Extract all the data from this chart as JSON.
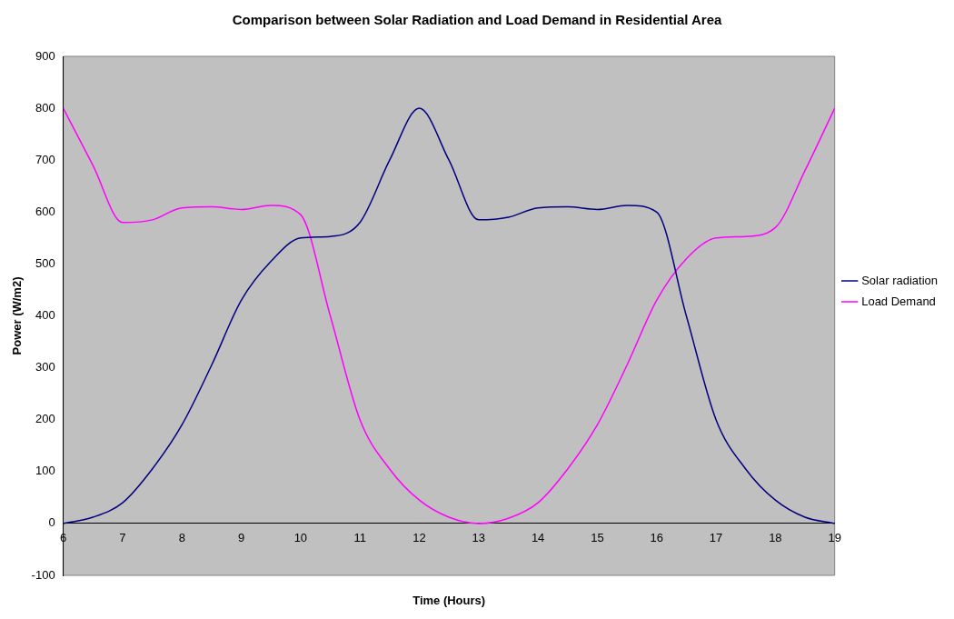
{
  "chart_data": {
    "type": "line",
    "title": "Comparison between Solar Radiation and Load Demand in Residential Area",
    "xlabel": "Time (Hours)",
    "ylabel": "Power (W/m2)",
    "xlim": [
      6,
      19
    ],
    "xticks": [
      6,
      7,
      8,
      9,
      10,
      11,
      12,
      13,
      14,
      15,
      16,
      17,
      18,
      19
    ],
    "ylim": [
      -100,
      900
    ],
    "yticks": [
      -100,
      0,
      100,
      200,
      300,
      400,
      500,
      600,
      700,
      800,
      900
    ],
    "x": [
      6,
      6.5,
      7,
      7.5,
      8,
      8.5,
      9,
      9.5,
      10,
      10.5,
      11,
      11.5,
      12,
      12.5,
      13,
      13.5,
      14,
      14.5,
      15,
      15.5,
      16,
      16.5,
      17,
      17.5,
      18,
      18.5,
      19
    ],
    "series": [
      {
        "name": "Solar radiation",
        "color": "#000080",
        "values": [
          0,
          12,
          40,
          105,
          190,
          305,
          430,
          505,
          550,
          553,
          580,
          700,
          800,
          700,
          585,
          590,
          608,
          610,
          605,
          613,
          600,
          400,
          200,
          105,
          45,
          12,
          0
        ]
      },
      {
        "name": "Load Demand",
        "color": "#ff00ff",
        "values": [
          800,
          690,
          580,
          585,
          608,
          610,
          605,
          613,
          595,
          400,
          200,
          105,
          45,
          12,
          0,
          10,
          40,
          105,
          190,
          305,
          430,
          510,
          550,
          553,
          570,
          680,
          800
        ]
      }
    ],
    "grid": false,
    "legend": "right",
    "marker": "none",
    "line_style": "solid"
  }
}
